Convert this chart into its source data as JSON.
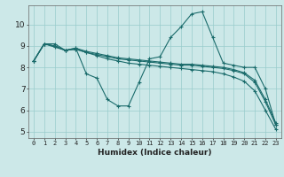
{
  "xlabel": "Humidex (Indice chaleur)",
  "background_color": "#cce8e8",
  "grid_color": "#99cccc",
  "line_color": "#1a6b6b",
  "xlim": [
    -0.5,
    23.5
  ],
  "ylim": [
    4.7,
    10.9
  ],
  "xtick_labels": [
    "0",
    "1",
    "2",
    "3",
    "4",
    "5",
    "6",
    "7",
    "8",
    "9",
    "10",
    "11",
    "12",
    "13",
    "14",
    "15",
    "16",
    "17",
    "18",
    "19",
    "20",
    "21",
    "22",
    "23"
  ],
  "yticks": [
    5,
    6,
    7,
    8,
    9,
    10
  ],
  "lines": [
    {
      "x": [
        0,
        1,
        2,
        3,
        4,
        5,
        6,
        7,
        8,
        9,
        10,
        11,
        12,
        13,
        14,
        15,
        16,
        17,
        18,
        19,
        20,
        21,
        22,
        23
      ],
      "y": [
        8.3,
        9.1,
        9.1,
        8.8,
        8.9,
        7.7,
        7.5,
        6.5,
        6.2,
        6.2,
        7.3,
        8.4,
        8.5,
        9.4,
        9.9,
        10.5,
        10.6,
        9.4,
        8.2,
        8.1,
        8.0,
        8.0,
        7.0,
        5.3
      ]
    },
    {
      "x": [
        0,
        1,
        2,
        3,
        4,
        5,
        6,
        7,
        8,
        9,
        10,
        11,
        12,
        13,
        14,
        15,
        16,
        17,
        18,
        19,
        20,
        21,
        22,
        23
      ],
      "y": [
        8.3,
        9.1,
        9.0,
        8.8,
        8.85,
        8.7,
        8.6,
        8.5,
        8.4,
        8.35,
        8.3,
        8.25,
        8.2,
        8.15,
        8.1,
        8.1,
        8.05,
        8.0,
        7.95,
        7.85,
        7.7,
        7.3,
        6.4,
        5.3
      ]
    },
    {
      "x": [
        0,
        1,
        2,
        3,
        4,
        5,
        6,
        7,
        8,
        9,
        10,
        11,
        12,
        13,
        14,
        15,
        16,
        17,
        18,
        19,
        20,
        21,
        22,
        23
      ],
      "y": [
        8.3,
        9.1,
        9.0,
        8.8,
        8.9,
        8.75,
        8.65,
        8.55,
        8.45,
        8.4,
        8.35,
        8.3,
        8.25,
        8.2,
        8.15,
        8.15,
        8.1,
        8.05,
        8.0,
        7.9,
        7.75,
        7.4,
        6.5,
        5.4
      ]
    },
    {
      "x": [
        0,
        1,
        2,
        3,
        4,
        5,
        6,
        7,
        8,
        9,
        10,
        11,
        12,
        13,
        14,
        15,
        16,
        17,
        18,
        19,
        20,
        21,
        22,
        23
      ],
      "y": [
        8.3,
        9.1,
        8.95,
        8.8,
        8.85,
        8.7,
        8.55,
        8.4,
        8.3,
        8.2,
        8.15,
        8.1,
        8.05,
        8.0,
        7.95,
        7.9,
        7.85,
        7.8,
        7.7,
        7.55,
        7.35,
        6.9,
        6.0,
        5.1
      ]
    }
  ]
}
